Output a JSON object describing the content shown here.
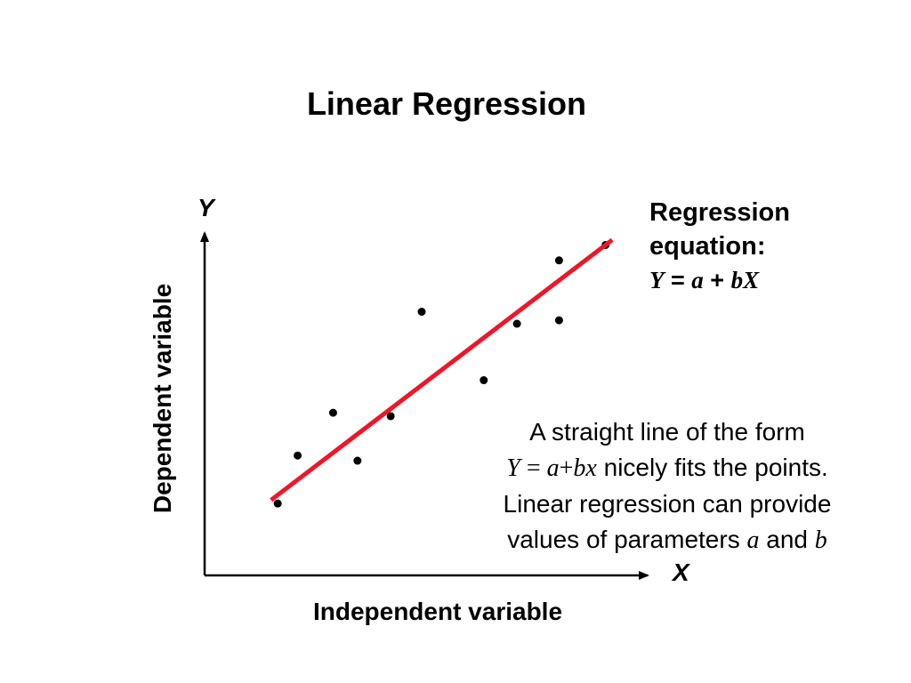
{
  "slide": {
    "title": "Linear Regression"
  },
  "chart_data": {
    "type": "scatter",
    "title": "Linear Regression",
    "xlabel": "Independent variable",
    "ylabel": "Dependent variable",
    "x_axis_symbol": "X",
    "y_axis_symbol": "Y",
    "xlim": [
      0,
      10
    ],
    "ylim": [
      0,
      10
    ],
    "grid": false,
    "points": [
      {
        "x": 1.65,
        "y": 2.1
      },
      {
        "x": 2.1,
        "y": 3.5
      },
      {
        "x": 2.9,
        "y": 4.75
      },
      {
        "x": 3.45,
        "y": 3.35
      },
      {
        "x": 4.2,
        "y": 4.65
      },
      {
        "x": 4.9,
        "y": 7.7
      },
      {
        "x": 6.3,
        "y": 5.7
      },
      {
        "x": 7.05,
        "y": 7.35
      },
      {
        "x": 8.0,
        "y": 7.45
      },
      {
        "x": 8.0,
        "y": 9.2
      },
      {
        "x": 9.05,
        "y": 9.65
      }
    ],
    "regression_line": {
      "x": [
        1.5,
        9.2
      ],
      "y": [
        2.2,
        9.8
      ],
      "color": "#e8192c"
    },
    "axis_color": "#000000",
    "point_color": "#000000"
  },
  "annotations": {
    "equation_label_line1": "Regression",
    "equation_label_line2": "equation:",
    "equation": {
      "y": "Y",
      "eq": " = ",
      "a": "a",
      "plus": "  + ",
      "bx": "bX"
    },
    "note": {
      "line1": "A straight line of the form",
      "formula_y": "Y",
      "formula_eq": " = ",
      "formula_a": "a",
      "formula_plus": "+",
      "formula_bx": "bx",
      "line2_rest": " nicely fits the points.",
      "line3": "Linear regression can provide",
      "line4_pre": "values of parameters ",
      "param_a": "a",
      "and_word": " and ",
      "param_b": "b"
    }
  }
}
